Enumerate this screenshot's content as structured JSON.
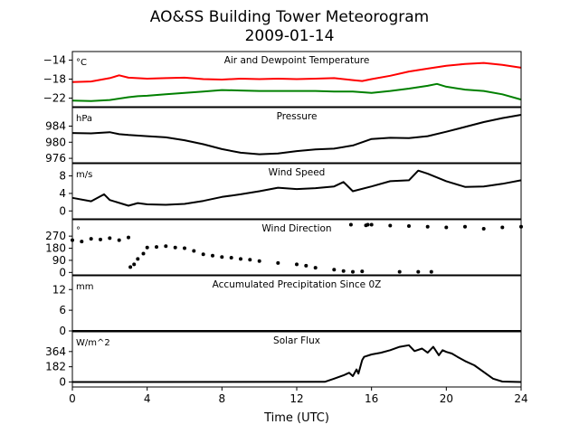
{
  "chart_data": [
    {
      "type": "line",
      "title": "AO&SS Building Tower Meteorogram",
      "subtitle": "2009-01-14",
      "xlabel": "Time (UTC)",
      "xlim": [
        0,
        24
      ],
      "xticks": [
        0,
        4,
        8,
        12,
        16,
        20,
        24
      ],
      "xticklabels": [
        "0",
        "4",
        "8",
        "12",
        "16",
        "20",
        "24"
      ]
    },
    {
      "type": "line",
      "label": "Air and Dewpoint Temperature",
      "unit": "°C",
      "ylim": [
        -23.8,
        -12.2
      ],
      "yticks": [
        -14,
        -18,
        -22
      ],
      "yticklabels": [
        "−14",
        "−18",
        "−22"
      ],
      "series": [
        {
          "color": "#ff0000",
          "x": [
            0,
            1,
            2,
            2.5,
            3,
            4,
            5,
            6,
            7,
            8,
            9,
            10,
            11,
            12,
            13,
            14,
            15,
            15.5,
            16,
            17,
            18,
            19,
            20,
            21,
            22,
            23,
            24
          ],
          "y": [
            -18.6,
            -18.5,
            -17.8,
            -17.2,
            -17.7,
            -17.9,
            -17.8,
            -17.7,
            -18.0,
            -18.1,
            -17.9,
            -18.0,
            -17.9,
            -18.0,
            -17.9,
            -17.8,
            -18.2,
            -18.4,
            -18.0,
            -17.3,
            -16.4,
            -15.8,
            -15.2,
            -14.8,
            -14.6,
            -15.0,
            -15.6
          ]
        },
        {
          "color": "#008000",
          "x": [
            0,
            1,
            2,
            3,
            3.5,
            4,
            5,
            6,
            7,
            8,
            9,
            10,
            11,
            12,
            13,
            14,
            15,
            16,
            17,
            18,
            19,
            19.5,
            20,
            21,
            22,
            23,
            24
          ],
          "y": [
            -22.5,
            -22.6,
            -22.4,
            -21.8,
            -21.6,
            -21.5,
            -21.2,
            -20.9,
            -20.6,
            -20.3,
            -20.4,
            -20.5,
            -20.5,
            -20.5,
            -20.5,
            -20.6,
            -20.6,
            -20.9,
            -20.5,
            -20.0,
            -19.4,
            -19.0,
            -19.6,
            -20.2,
            -20.5,
            -21.2,
            -22.3
          ]
        }
      ]
    },
    {
      "type": "line",
      "label": "Pressure",
      "unit": "hPa",
      "ylim": [
        974.9,
        988.6
      ],
      "yticks": [
        984,
        980,
        976
      ],
      "yticklabels": [
        "984",
        "980",
        "976"
      ],
      "series": [
        {
          "color": "#000000",
          "x": [
            0,
            1,
            2,
            2.5,
            3,
            4,
            5,
            6,
            7,
            8,
            9,
            10,
            11,
            12,
            13,
            14,
            15,
            16,
            17,
            18,
            19,
            20,
            21,
            22,
            23,
            24
          ],
          "y": [
            982.3,
            982.2,
            982.5,
            982.0,
            981.8,
            981.5,
            981.2,
            980.5,
            979.5,
            978.3,
            977.4,
            977.0,
            977.2,
            977.8,
            978.2,
            978.4,
            979.2,
            980.8,
            981.1,
            981.0,
            981.5,
            982.6,
            983.8,
            985.0,
            986.0,
            986.8
          ]
        }
      ]
    },
    {
      "type": "line",
      "label": "Wind Speed",
      "unit": "m/s",
      "ylim": [
        -1.8,
        10.8
      ],
      "yticks": [
        8,
        4,
        0
      ],
      "yticklabels": [
        "8",
        "4",
        "0"
      ],
      "series": [
        {
          "color": "#000000",
          "x": [
            0,
            1,
            1.7,
            2,
            3,
            3.5,
            4,
            5,
            6,
            7,
            8,
            9,
            10,
            11,
            12,
            13,
            14,
            14.5,
            15,
            16,
            17,
            18,
            18.5,
            19,
            20,
            21,
            22,
            23,
            24
          ],
          "y": [
            3.0,
            2.2,
            3.8,
            2.5,
            1.2,
            1.8,
            1.5,
            1.4,
            1.6,
            2.3,
            3.2,
            3.8,
            4.5,
            5.3,
            5.0,
            5.2,
            5.6,
            6.6,
            4.5,
            5.6,
            6.8,
            7.0,
            9.2,
            8.5,
            6.8,
            5.5,
            5.6,
            6.2,
            7.0
          ]
        }
      ]
    },
    {
      "type": "scatter",
      "label": "Wind Direction",
      "unit": "°",
      "ylim": [
        -18,
        392
      ],
      "yticks": [
        270,
        180,
        90,
        0
      ],
      "yticklabels": [
        "270",
        "180",
        "90",
        "0"
      ],
      "series": [
        {
          "color": "#000000",
          "x": [
            0,
            0.5,
            1,
            1.5,
            2,
            2.5,
            3,
            3.1,
            3.3,
            3.5,
            3.8,
            4,
            4.5,
            5,
            5.5,
            6,
            6.5,
            7,
            7.5,
            8,
            8.5,
            9,
            9.5,
            10,
            11,
            12,
            12.5,
            13,
            14,
            14.5,
            15,
            15.5,
            15.7,
            15.8,
            16,
            17,
            18,
            19,
            20,
            21,
            22,
            23,
            24,
            14.9,
            17.5,
            18.5,
            19.2
          ],
          "y": [
            240,
            230,
            250,
            245,
            255,
            240,
            260,
            40,
            60,
            100,
            140,
            185,
            190,
            195,
            185,
            180,
            160,
            135,
            125,
            115,
            110,
            100,
            95,
            85,
            70,
            60,
            50,
            35,
            20,
            10,
            5,
            8,
            350,
            355,
            355,
            348,
            345,
            340,
            335,
            340,
            325,
            335,
            340,
            355,
            5,
            5,
            5
          ]
        }
      ]
    },
    {
      "type": "line",
      "label": "Accumulated Precipitation Since 0Z",
      "unit": "mm",
      "ylim": [
        0,
        16
      ],
      "yticks": [
        12,
        6,
        0
      ],
      "yticklabels": [
        "12",
        "6",
        "0"
      ],
      "series": [
        {
          "color": "#000000",
          "x": [
            0,
            24
          ],
          "y": [
            0,
            0
          ]
        }
      ]
    },
    {
      "type": "line",
      "label": "Solar Flux",
      "unit": "W/m^2",
      "ylim": [
        -60,
        600
      ],
      "yticks": [
        364,
        182,
        0
      ],
      "yticklabels": [
        "364",
        "182",
        "0"
      ],
      "series": [
        {
          "color": "#000000",
          "x": [
            0,
            13.5,
            14,
            14.5,
            14.8,
            15,
            15.2,
            15.3,
            15.5,
            15.6,
            16,
            16.5,
            17,
            17.5,
            18,
            18.3,
            18.7,
            19,
            19.3,
            19.6,
            19.8,
            20,
            20.3,
            20.6,
            21,
            21.5,
            22,
            22.5,
            23,
            24
          ],
          "y": [
            0,
            2,
            40,
            80,
            110,
            70,
            150,
            100,
            260,
            300,
            330,
            350,
            380,
            420,
            440,
            370,
            400,
            350,
            420,
            320,
            380,
            360,
            340,
            300,
            250,
            200,
            120,
            40,
            5,
            0
          ]
        }
      ]
    }
  ]
}
